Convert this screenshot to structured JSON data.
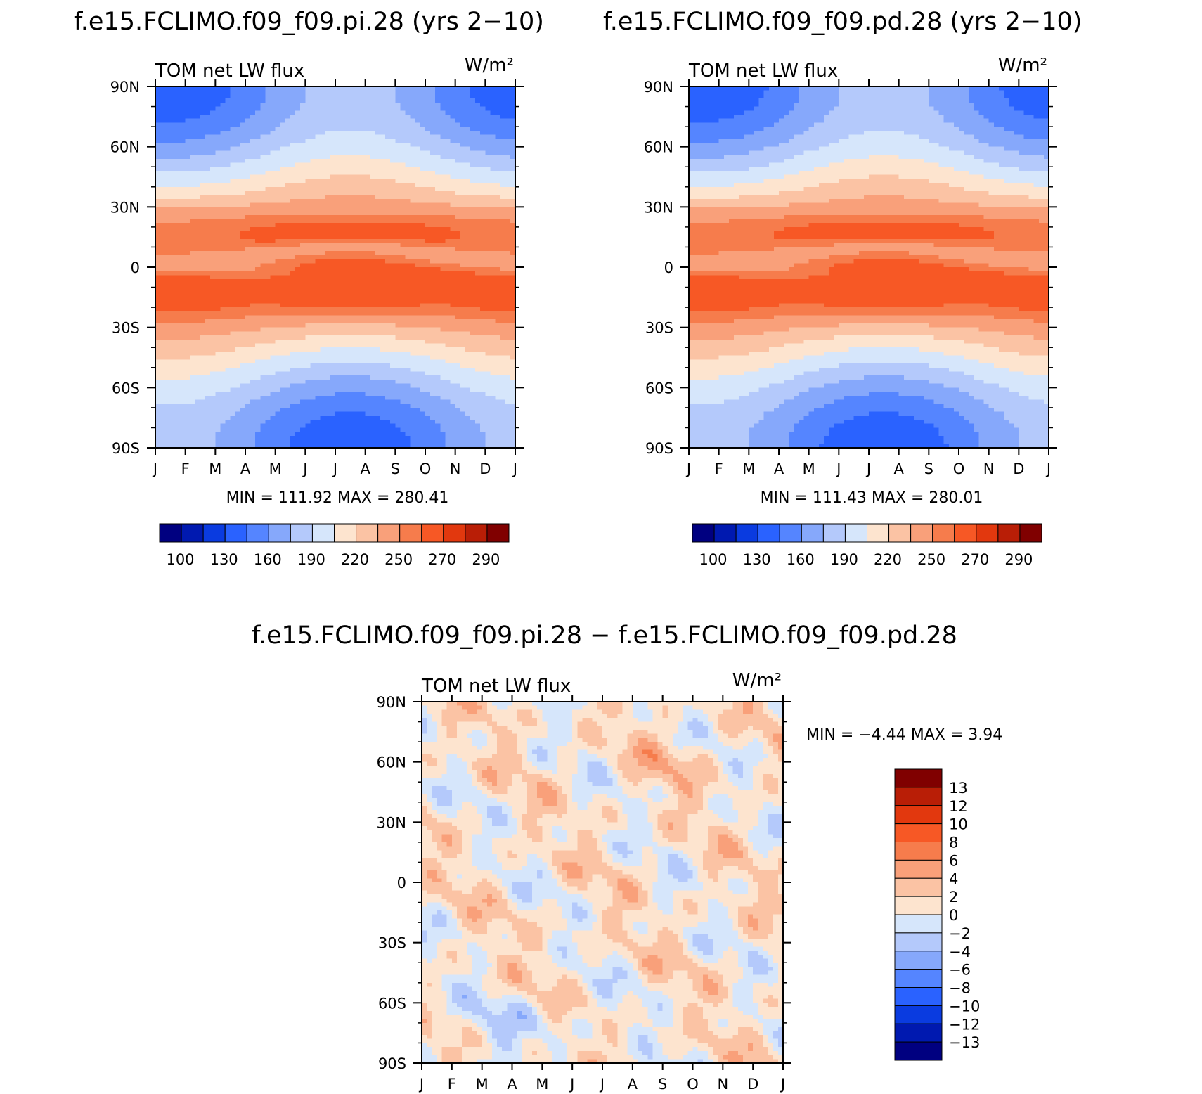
{
  "panels": [
    {
      "id": "pi",
      "title": "f.e15.FCLIMO.f09_f09.pi.28 (yrs 2−10)",
      "left_label": "TOM  net  LW  flux",
      "units": "W/m²",
      "stats": "MIN  =  111.92  MAX  =  280.41",
      "colorbar_labels": [
        "100",
        "130",
        "160",
        "190",
        "220",
        "250",
        "270",
        "290"
      ]
    },
    {
      "id": "pd",
      "title": "f.e15.FCLIMO.f09_f09.pd.28 (yrs 2−10)",
      "left_label": "TOM  net  LW  flux",
      "units": "W/m²",
      "stats": "MIN  =  111.43  MAX  =  280.01",
      "colorbar_labels": [
        "100",
        "130",
        "160",
        "190",
        "220",
        "250",
        "270",
        "290"
      ]
    },
    {
      "id": "diff",
      "title": "f.e15.FCLIMO.f09_f09.pi.28  −  f.e15.FCLIMO.f09_f09.pd.28",
      "left_label": "TOM  net  LW  flux",
      "units": "W/m²",
      "stats": "MIN  =    −4.44  MAX  =      3.94",
      "colorbar_labels": [
        "13",
        "12",
        "10",
        "8",
        "6",
        "4",
        "2",
        "0",
        "−2",
        "−4",
        "−6",
        "−8",
        "−10",
        "−12",
        "−13"
      ]
    }
  ],
  "month_labels": [
    "J",
    "F",
    "M",
    "A",
    "M",
    "J",
    "J",
    "A",
    "S",
    "O",
    "N",
    "D",
    "J"
  ],
  "lat_labels": [
    "90N",
    "60N",
    "30N",
    "0",
    "30S",
    "60S",
    "90S"
  ],
  "colors": {
    "abs_palette": [
      "#000080",
      "#0019b0",
      "#0a3be0",
      "#2a62ff",
      "#5585ff",
      "#86a8fb",
      "#b4c9fb",
      "#d6e6fb",
      "#fde4cf",
      "#fbc3a4",
      "#f9a07a",
      "#f67c4c",
      "#f75825",
      "#e2380e",
      "#b91e06",
      "#800000"
    ],
    "diff_palette": [
      "#800000",
      "#b91e06",
      "#e2380e",
      "#f75825",
      "#f67c4c",
      "#f9a07a",
      "#fbc3a4",
      "#fde4cf",
      "#d6e6fb",
      "#b4c9fb",
      "#86a8fb",
      "#5585ff",
      "#2a62ff",
      "#0a3be0",
      "#0019b0",
      "#000080"
    ]
  },
  "chart_data": [
    {
      "type": "heatmap",
      "title": "f.e15.FCLIMO.f09_f09.pi.28 (yrs 2−10)",
      "subtitle": "TOM  net  LW  flux",
      "units": "W/m²",
      "x": [
        "J",
        "F",
        "M",
        "A",
        "M",
        "J",
        "J",
        "A",
        "S",
        "O",
        "N",
        "D",
        "J"
      ],
      "y": [
        "90N",
        "60N",
        "30N",
        "0",
        "30S",
        "60S",
        "90S"
      ],
      "min": 111.92,
      "max": 280.41,
      "levels": [
        100,
        115,
        130,
        145,
        160,
        175,
        190,
        205,
        220,
        235,
        250,
        260,
        270,
        280,
        290
      ]
    },
    {
      "type": "heatmap",
      "title": "f.e15.FCLIMO.f09_f09.pd.28 (yrs 2−10)",
      "subtitle": "TOM  net  LW  flux",
      "units": "W/m²",
      "x": [
        "J",
        "F",
        "M",
        "A",
        "M",
        "J",
        "J",
        "A",
        "S",
        "O",
        "N",
        "D",
        "J"
      ],
      "y": [
        "90N",
        "60N",
        "30N",
        "0",
        "30S",
        "60S",
        "90S"
      ],
      "min": 111.43,
      "max": 280.01,
      "levels": [
        100,
        115,
        130,
        145,
        160,
        175,
        190,
        205,
        220,
        235,
        250,
        260,
        270,
        280,
        290
      ]
    },
    {
      "type": "heatmap",
      "title": "f.e15.FCLIMO.f09_f09.pi.28  −  f.e15.FCLIMO.f09_f09.pd.28",
      "subtitle": "TOM  net  LW  flux",
      "units": "W/m²",
      "x": [
        "J",
        "F",
        "M",
        "A",
        "M",
        "J",
        "J",
        "A",
        "S",
        "O",
        "N",
        "D",
        "J"
      ],
      "y": [
        "90N",
        "60N",
        "30N",
        "0",
        "30S",
        "60S",
        "90S"
      ],
      "min": -4.44,
      "max": 3.94,
      "levels": [
        -13,
        -12,
        -10,
        -8,
        -6,
        -4,
        -2,
        0,
        2,
        4,
        6,
        8,
        10,
        12,
        13
      ]
    }
  ]
}
